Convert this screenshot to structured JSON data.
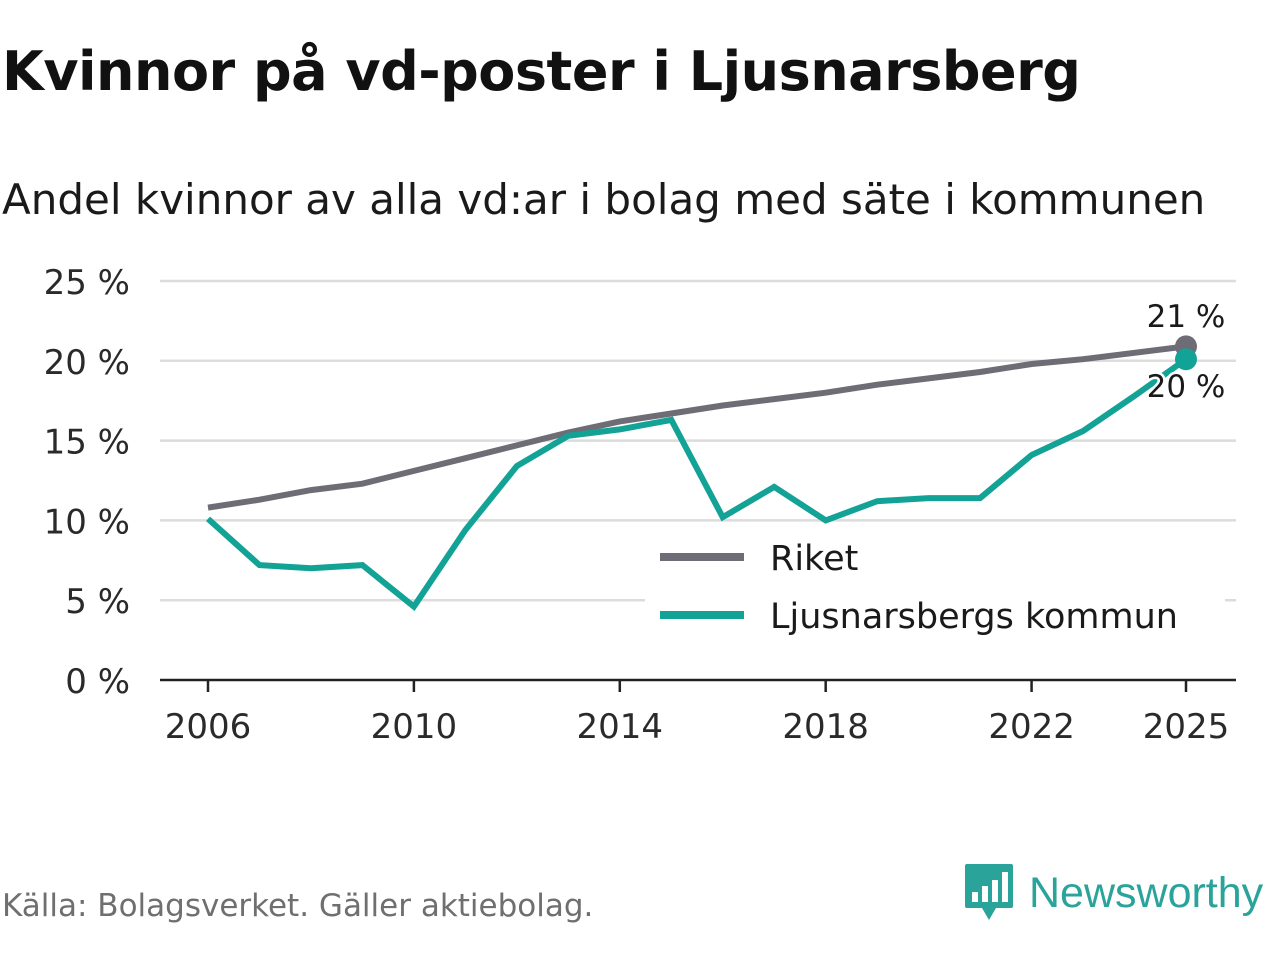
{
  "title": "Kvinnor på vd-poster i Ljusnarsberg",
  "subtitle": "Andel kvinnor av alla vd:ar i bolag med säte i kommunen",
  "source": "Källa: Bolagsverket. Gäller aktiebolag.",
  "brand": {
    "name": "Newsworthy",
    "logo_icon": "newsworthy-logo-icon",
    "color": "#2aa39a"
  },
  "chart_data": {
    "type": "line",
    "title": "Kvinnor på vd-poster i Ljusnarsberg",
    "subtitle": "Andel kvinnor av alla vd:ar i bolag med säte i kommunen",
    "xlabel": "",
    "ylabel": "",
    "x": [
      2006,
      2007,
      2008,
      2009,
      2010,
      2011,
      2012,
      2013,
      2014,
      2015,
      2016,
      2017,
      2018,
      2019,
      2020,
      2021,
      2022,
      2023,
      2024,
      2025
    ],
    "xticks": [
      2006,
      2010,
      2014,
      2018,
      2022,
      2025
    ],
    "xtick_labels": [
      "2006",
      "2010",
      "2014",
      "2018",
      "2022",
      "2025"
    ],
    "xlim": [
      2006,
      2025
    ],
    "ylim": [
      0,
      25
    ],
    "yticks": [
      0,
      5,
      10,
      15,
      20,
      25
    ],
    "ytick_labels": [
      "0 %",
      "5 %",
      "10 %",
      "15 %",
      "20 %",
      "25 %"
    ],
    "grid": true,
    "legend_position": "bottom-right",
    "series": [
      {
        "name": "Riket",
        "color": "#6e6c74",
        "values": [
          10.8,
          11.3,
          11.9,
          12.3,
          13.1,
          13.9,
          14.7,
          15.5,
          16.2,
          16.7,
          17.2,
          17.6,
          18.0,
          18.5,
          18.9,
          19.3,
          19.8,
          20.1,
          20.5,
          20.9
        ],
        "end_label": "21 %"
      },
      {
        "name": "Ljusnarsbergs kommun",
        "color": "#12a296",
        "values": [
          10.1,
          7.2,
          7.0,
          7.2,
          4.6,
          9.4,
          13.4,
          15.3,
          15.7,
          16.3,
          10.2,
          12.1,
          10.0,
          11.2,
          11.4,
          11.4,
          14.1,
          15.6,
          17.8,
          20.1
        ],
        "end_label": "20 %"
      }
    ]
  }
}
